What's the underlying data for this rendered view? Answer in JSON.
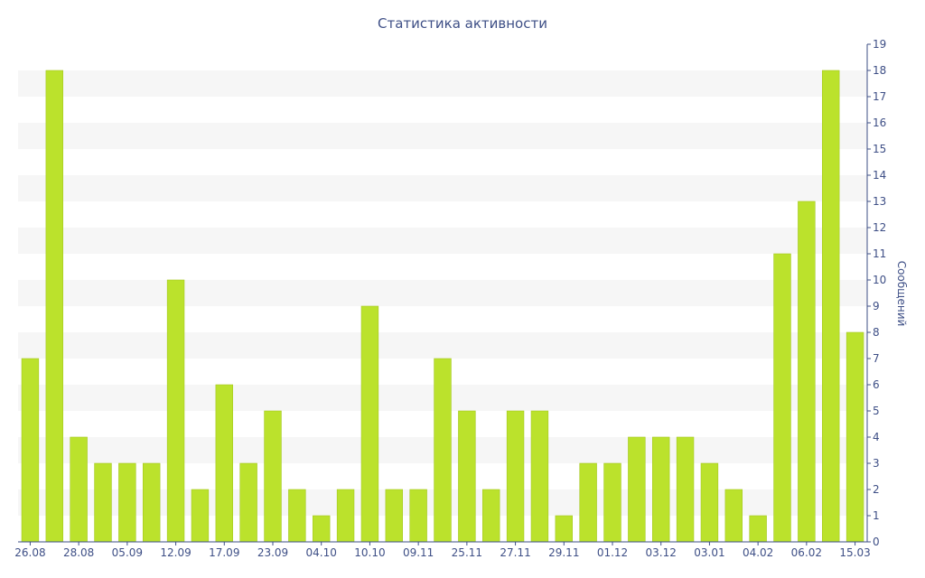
{
  "chart_data": {
    "type": "bar",
    "title": "Статистика активности",
    "xlabel": "",
    "ylabel": "Сообщений",
    "y_axis_position": "right",
    "ylim": [
      0,
      19
    ],
    "grid": "horizontal-bands",
    "x_tick_labels": [
      "26.08",
      "28.08",
      "05.09",
      "12.09",
      "17.09",
      "23.09",
      "04.10",
      "10.10",
      "09.11",
      "25.11",
      "27.11",
      "29.11",
      "01.12",
      "03.12",
      "03.01",
      "04.02",
      "06.02",
      "15.03"
    ],
    "y_tick_labels": [
      "0",
      "1",
      "2",
      "3",
      "4",
      "5",
      "6",
      "7",
      "8",
      "9",
      "10",
      "11",
      "12",
      "13",
      "14",
      "15",
      "16",
      "17",
      "18",
      "19"
    ],
    "values": [
      7,
      18,
      4,
      3,
      3,
      3,
      10,
      2,
      6,
      3,
      5,
      2,
      1,
      2,
      9,
      2,
      2,
      7,
      5,
      2,
      5,
      5,
      1,
      3,
      3,
      4,
      4,
      4,
      3,
      2,
      1,
      11,
      13,
      18,
      8
    ],
    "colors": {
      "bar": "#bbe22c",
      "bar_edge": "#a4c81f",
      "band": "#f6f6f6",
      "axis": "#3e4f86",
      "text": "#3e4f86"
    }
  }
}
